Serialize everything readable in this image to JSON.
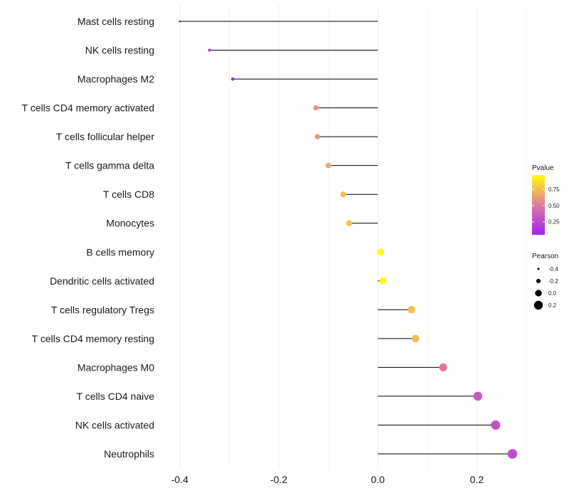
{
  "chart_data": {
    "type": "lollipop",
    "title": "",
    "xlabel": "",
    "ylabel": "",
    "xlim": [
      -0.44,
      0.3
    ],
    "x_ticks": [
      -0.4,
      -0.2,
      0.0,
      0.2
    ],
    "x_tick_labels": [
      "-0.4",
      "-0.2",
      "0.0",
      "0.2"
    ],
    "grid": true,
    "baseline": 0.0,
    "categories": [
      "Mast cells resting",
      "NK cells resting",
      "Macrophages M2",
      "T cells CD4 memory activated",
      "T cells follicular helper",
      "T cells gamma delta",
      "T cells CD8",
      "Monocytes",
      "B cells memory",
      "Dendritic cells activated",
      "T cells regulatory  Tregs ",
      "T cells CD4 memory resting",
      "Macrophages M0",
      "T cells CD4 naive",
      "NK cells activated",
      "Neutrophils"
    ],
    "pearson": [
      -0.4,
      -0.34,
      -0.293,
      -0.125,
      -0.122,
      -0.1,
      -0.07,
      -0.058,
      0.006,
      0.01,
      0.068,
      0.076,
      0.132,
      0.202,
      0.238,
      0.272
    ],
    "pvalue": [
      0.05,
      0.1,
      0.12,
      0.6,
      0.6,
      0.67,
      0.75,
      0.78,
      0.97,
      0.96,
      0.75,
      0.74,
      0.5,
      0.35,
      0.3,
      0.28
    ],
    "color_legend": {
      "title": "Pvalue",
      "ticks": [
        0.25,
        0.5,
        0.75
      ],
      "tick_labels": [
        "0.25",
        "0.50",
        "0.75"
      ],
      "range": [
        0.05,
        0.97
      ],
      "low_color": "#a020f0",
      "mid_color": "#e07aa0",
      "high_color": "#ffff00"
    },
    "size_legend": {
      "title": "Pearson",
      "values": [
        -0.4,
        -0.2,
        0.0,
        0.2
      ],
      "labels": [
        "-0.4",
        "-0.2",
        "0.0",
        "0.2"
      ]
    }
  }
}
